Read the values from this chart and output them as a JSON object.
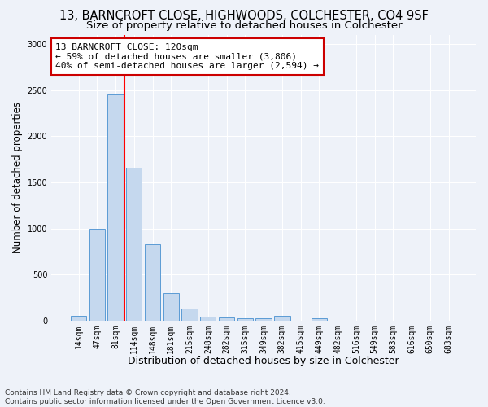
{
  "title": "13, BARNCROFT CLOSE, HIGHWOODS, COLCHESTER, CO4 9SF",
  "subtitle": "Size of property relative to detached houses in Colchester",
  "xlabel": "Distribution of detached houses by size in Colchester",
  "ylabel": "Number of detached properties",
  "categories": [
    "14sqm",
    "47sqm",
    "81sqm",
    "114sqm",
    "148sqm",
    "181sqm",
    "215sqm",
    "248sqm",
    "282sqm",
    "315sqm",
    "349sqm",
    "382sqm",
    "415sqm",
    "449sqm",
    "482sqm",
    "516sqm",
    "549sqm",
    "583sqm",
    "616sqm",
    "650sqm",
    "683sqm"
  ],
  "values": [
    55,
    1000,
    2450,
    1660,
    830,
    305,
    130,
    45,
    35,
    30,
    25,
    55,
    0,
    30,
    0,
    0,
    0,
    0,
    0,
    0,
    0
  ],
  "bar_color": "#c5d8ee",
  "bar_edge_color": "#5b9bd5",
  "red_line_index": 2.5,
  "annotation_text": "13 BARNCROFT CLOSE: 120sqm\n← 59% of detached houses are smaller (3,806)\n40% of semi-detached houses are larger (2,594) →",
  "annotation_box_color": "#ffffff",
  "annotation_box_edge_color": "#cc0000",
  "ylim": [
    0,
    3100
  ],
  "yticks": [
    0,
    500,
    1000,
    1500,
    2000,
    2500,
    3000
  ],
  "footer": "Contains HM Land Registry data © Crown copyright and database right 2024.\nContains public sector information licensed under the Open Government Licence v3.0.",
  "background_color": "#eef2f9",
  "grid_color": "#ffffff",
  "title_fontsize": 10.5,
  "subtitle_fontsize": 9.5,
  "tick_fontsize": 7,
  "ylabel_fontsize": 8.5,
  "xlabel_fontsize": 9,
  "footer_fontsize": 6.5
}
